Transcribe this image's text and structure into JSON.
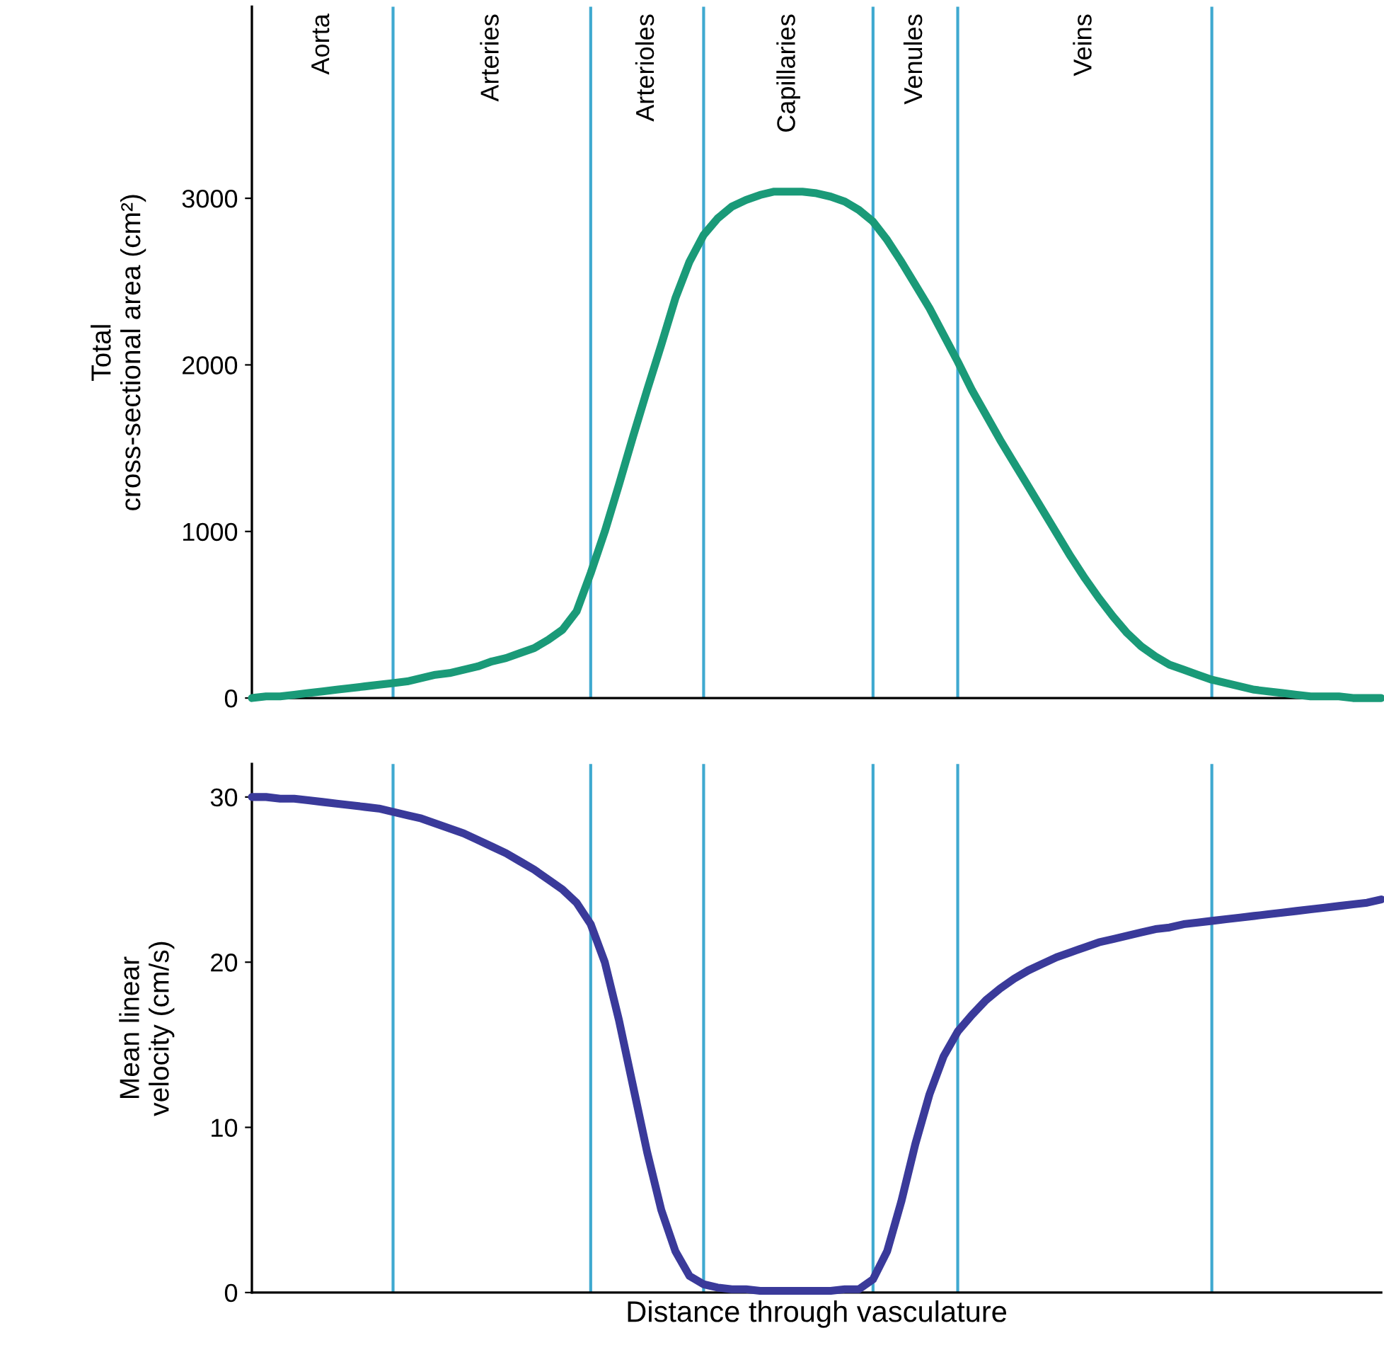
{
  "chart_data": [
    {
      "type": "line",
      "ylabel": "Total\ncross-sectional area (cm²)",
      "ylim": [
        0,
        4150
      ],
      "yticks": [
        0,
        1000,
        2000,
        3000
      ],
      "grid": false,
      "categories": [
        null,
        null,
        null,
        null,
        null,
        "Aorta",
        null,
        null,
        null,
        null,
        null,
        null,
        null,
        null,
        null,
        null,
        null,
        "Arteries",
        null,
        null,
        null,
        null,
        null,
        null,
        null,
        null,
        null,
        null,
        "Arterioles",
        null,
        null,
        null,
        null,
        null,
        null,
        null,
        null,
        null,
        "Capillaries",
        null,
        null,
        null,
        null,
        null,
        null,
        null,
        null,
        "Venules",
        null,
        null,
        null,
        null,
        null,
        null,
        null,
        null,
        null,
        null,
        null,
        "Veins",
        null,
        null,
        null,
        null,
        null,
        null,
        null,
        null,
        null,
        null,
        null,
        null,
        null,
        null,
        null,
        null,
        null,
        null,
        null,
        null,
        null
      ],
      "series": [
        {
          "color": "#1a9a78",
          "values": [
            0,
            10,
            10,
            20,
            30,
            40,
            50,
            60,
            70,
            80,
            90,
            100,
            120,
            140,
            150,
            170,
            190,
            220,
            240,
            270,
            300,
            350,
            410,
            520,
            750,
            1000,
            1280,
            1570,
            1850,
            2120,
            2400,
            2620,
            2780,
            2880,
            2950,
            2990,
            3020,
            3040,
            3040,
            3040,
            3030,
            3010,
            2980,
            2930,
            2860,
            2750,
            2620,
            2480,
            2340,
            2180,
            2020,
            1850,
            1700,
            1550,
            1410,
            1270,
            1130,
            990,
            850,
            720,
            600,
            490,
            390,
            310,
            250,
            200,
            170,
            140,
            110,
            90,
            70,
            50,
            40,
            30,
            20,
            10,
            10,
            10,
            0,
            0,
            0
          ]
        }
      ]
    },
    {
      "type": "line",
      "ylabel": "Mean linear\nvelocity (cm/s)",
      "xlabel": "Distance through vasculature",
      "ylim": [
        0,
        32
      ],
      "yticks": [
        0,
        10,
        20,
        30
      ],
      "tick_labels": "y",
      "grid": false,
      "categories": [
        null,
        null,
        null,
        null,
        null,
        null,
        null,
        null,
        null,
        null,
        null,
        null,
        null,
        null,
        null,
        null,
        null,
        null,
        null,
        null,
        null,
        null,
        null,
        null,
        null,
        null,
        null,
        null,
        null,
        null,
        null,
        null,
        null,
        null,
        null,
        null,
        null,
        null,
        null,
        null,
        null,
        null,
        null,
        null,
        null,
        null,
        null,
        null,
        null,
        null,
        null,
        null,
        null,
        null,
        null,
        null,
        null,
        null,
        null,
        null,
        null,
        null,
        null,
        null,
        null,
        null,
        null,
        null,
        null,
        null,
        null,
        null,
        null,
        null,
        null,
        null,
        null,
        null,
        null,
        null,
        null
      ],
      "series": [
        {
          "color": "#3a3a9a",
          "values": [
            30,
            30,
            29.9,
            29.9,
            29.8,
            29.7,
            29.6,
            29.5,
            29.4,
            29.3,
            29.1,
            28.9,
            28.7,
            28.4,
            28.1,
            27.8,
            27.4,
            27.0,
            26.6,
            26.1,
            25.6,
            25.0,
            24.4,
            23.6,
            22.3,
            20.0,
            16.5,
            12.5,
            8.5,
            5.0,
            2.5,
            1.0,
            0.5,
            0.3,
            0.2,
            0.2,
            0.1,
            0.1,
            0.1,
            0.1,
            0.1,
            0.1,
            0.2,
            0.2,
            0.8,
            2.5,
            5.5,
            9.0,
            12.0,
            14.3,
            15.8,
            16.8,
            17.7,
            18.4,
            19.0,
            19.5,
            19.9,
            20.3,
            20.6,
            20.9,
            21.2,
            21.4,
            21.6,
            21.8,
            22.0,
            22.1,
            22.3,
            22.4,
            22.5,
            22.6,
            22.7,
            22.8,
            22.9,
            23.0,
            23.1,
            23.2,
            23.3,
            23.4,
            23.5,
            23.6,
            23.8
          ]
        }
      ]
    }
  ]
}
